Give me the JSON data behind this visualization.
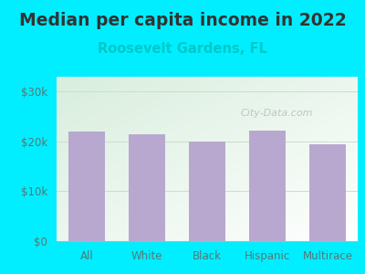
{
  "title": "Median per capita income in 2022",
  "subtitle": "Roosevelt Gardens, FL",
  "categories": [
    "All",
    "White",
    "Black",
    "Hispanic",
    "Multirace"
  ],
  "values": [
    22000,
    21500,
    20000,
    22200,
    19500
  ],
  "bar_color": "#b8a8d0",
  "title_fontsize": 13.5,
  "subtitle_fontsize": 10.5,
  "subtitle_color": "#00c8c8",
  "title_color": "#333333",
  "background_color": "#00eeff",
  "plot_bg_color_top_left": "#d8eedd",
  "plot_bg_color_bottom_right": "#ffffff",
  "yticks": [
    0,
    10000,
    20000,
    30000
  ],
  "ytick_labels": [
    "$0",
    "$10k",
    "$20k",
    "$30k"
  ],
  "ylim": [
    0,
    33000
  ],
  "tick_label_color": "#557777",
  "watermark_text": "City-Data.com",
  "watermark_color": "#bbbbbb",
  "grid_color": "#ccddcc"
}
